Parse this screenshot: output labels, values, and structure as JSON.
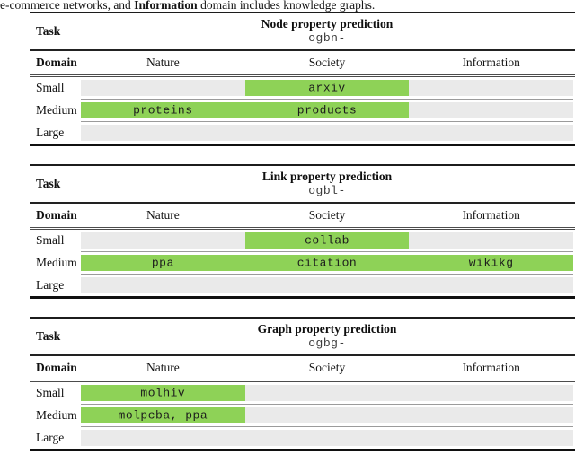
{
  "caption": {
    "part1": "e-commerce networks, and ",
    "bold": "Information",
    "part2": " domain includes knowledge graphs."
  },
  "labels": {
    "task": "Task",
    "domain": "Domain",
    "sizes": [
      "Small",
      "Medium",
      "Large"
    ]
  },
  "columns": [
    "Nature",
    "Society",
    "Information"
  ],
  "colors": {
    "highlight_green": "#8ed257",
    "track_gray": "#eaeaea",
    "rule_black": "#1c1c1c",
    "separator_gray": "#9b9b9b"
  },
  "tables": [
    {
      "title": "Node property prediction",
      "prefix": "ogbn-",
      "small": {
        "segment": "society",
        "labels": {
          "c2": "arxiv"
        }
      },
      "medium": {
        "segment": "nature-society",
        "labels": {
          "c1": "proteins",
          "c2": "products"
        }
      },
      "large": {
        "segment": "none",
        "labels": {}
      }
    },
    {
      "title": "Link property prediction",
      "prefix": "ogbl-",
      "small": {
        "segment": "society",
        "labels": {
          "c2": "collab"
        }
      },
      "medium": {
        "segment": "full",
        "labels": {
          "c1": "ppa",
          "c2": "citation",
          "c3": "wikikg"
        }
      },
      "large": {
        "segment": "none",
        "labels": {}
      }
    },
    {
      "title": "Graph property prediction",
      "prefix": "ogbg-",
      "small": {
        "segment": "nature",
        "labels": {
          "c1": "molhiv"
        }
      },
      "medium": {
        "segment": "nature",
        "labels": {
          "c1": "molpcba, ppa"
        }
      },
      "large": {
        "segment": "none",
        "labels": {}
      }
    }
  ]
}
